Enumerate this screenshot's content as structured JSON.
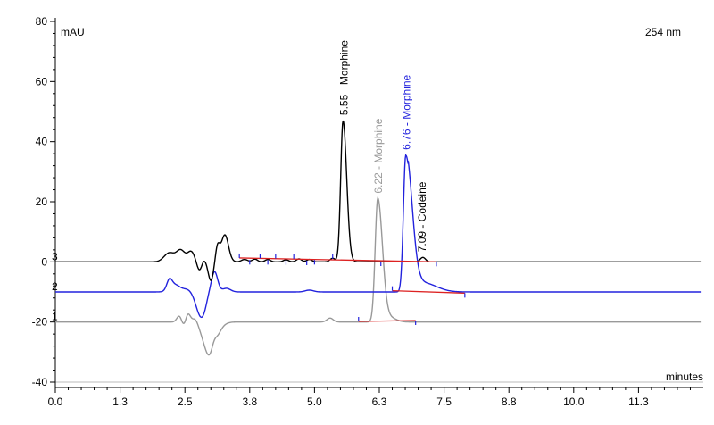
{
  "chart_data": {
    "type": "line",
    "title": "",
    "ylabel": "mAU",
    "xlabel": "minutes",
    "wavelength_label": "254 nm",
    "xlim": [
      0,
      12.5
    ],
    "ylim": [
      -40,
      80
    ],
    "x_tick_labels": [
      "0.0",
      "1.3",
      "2.5",
      "3.8",
      "5.0",
      "6.3",
      "7.5",
      "8.8",
      "10.0",
      "11.3"
    ],
    "x_tick_values": [
      0,
      1.25,
      2.5,
      3.75,
      5.0,
      6.25,
      7.5,
      8.75,
      10.0,
      11.25
    ],
    "y_tick_values": [
      80,
      60,
      40,
      20,
      0,
      -20,
      -40
    ],
    "colors": {
      "trace_1": "#999999",
      "trace_2": "#2222dd",
      "trace_3": "#000000",
      "baseline": "#dd2222",
      "axis": "#000000",
      "zero_line": "#bbbbbb"
    },
    "series": [
      {
        "name": "1",
        "color": "#999999",
        "offset": -20,
        "peaks": [
          {
            "rt": 6.22,
            "height": 41,
            "label": "6.22 - Morphine"
          }
        ]
      },
      {
        "name": "2",
        "color": "#2222dd",
        "offset": -10,
        "peaks": [
          {
            "rt": 6.76,
            "height": 45.5,
            "label": "6.76 - Morphine"
          }
        ]
      },
      {
        "name": "3",
        "color": "#000000",
        "offset": 0,
        "peaks": [
          {
            "rt": 5.55,
            "height": 47,
            "label": "5.55 - Morphine"
          },
          {
            "rt": 7.09,
            "height": 1.5,
            "label": "7.09 - Codeine"
          }
        ]
      }
    ]
  }
}
